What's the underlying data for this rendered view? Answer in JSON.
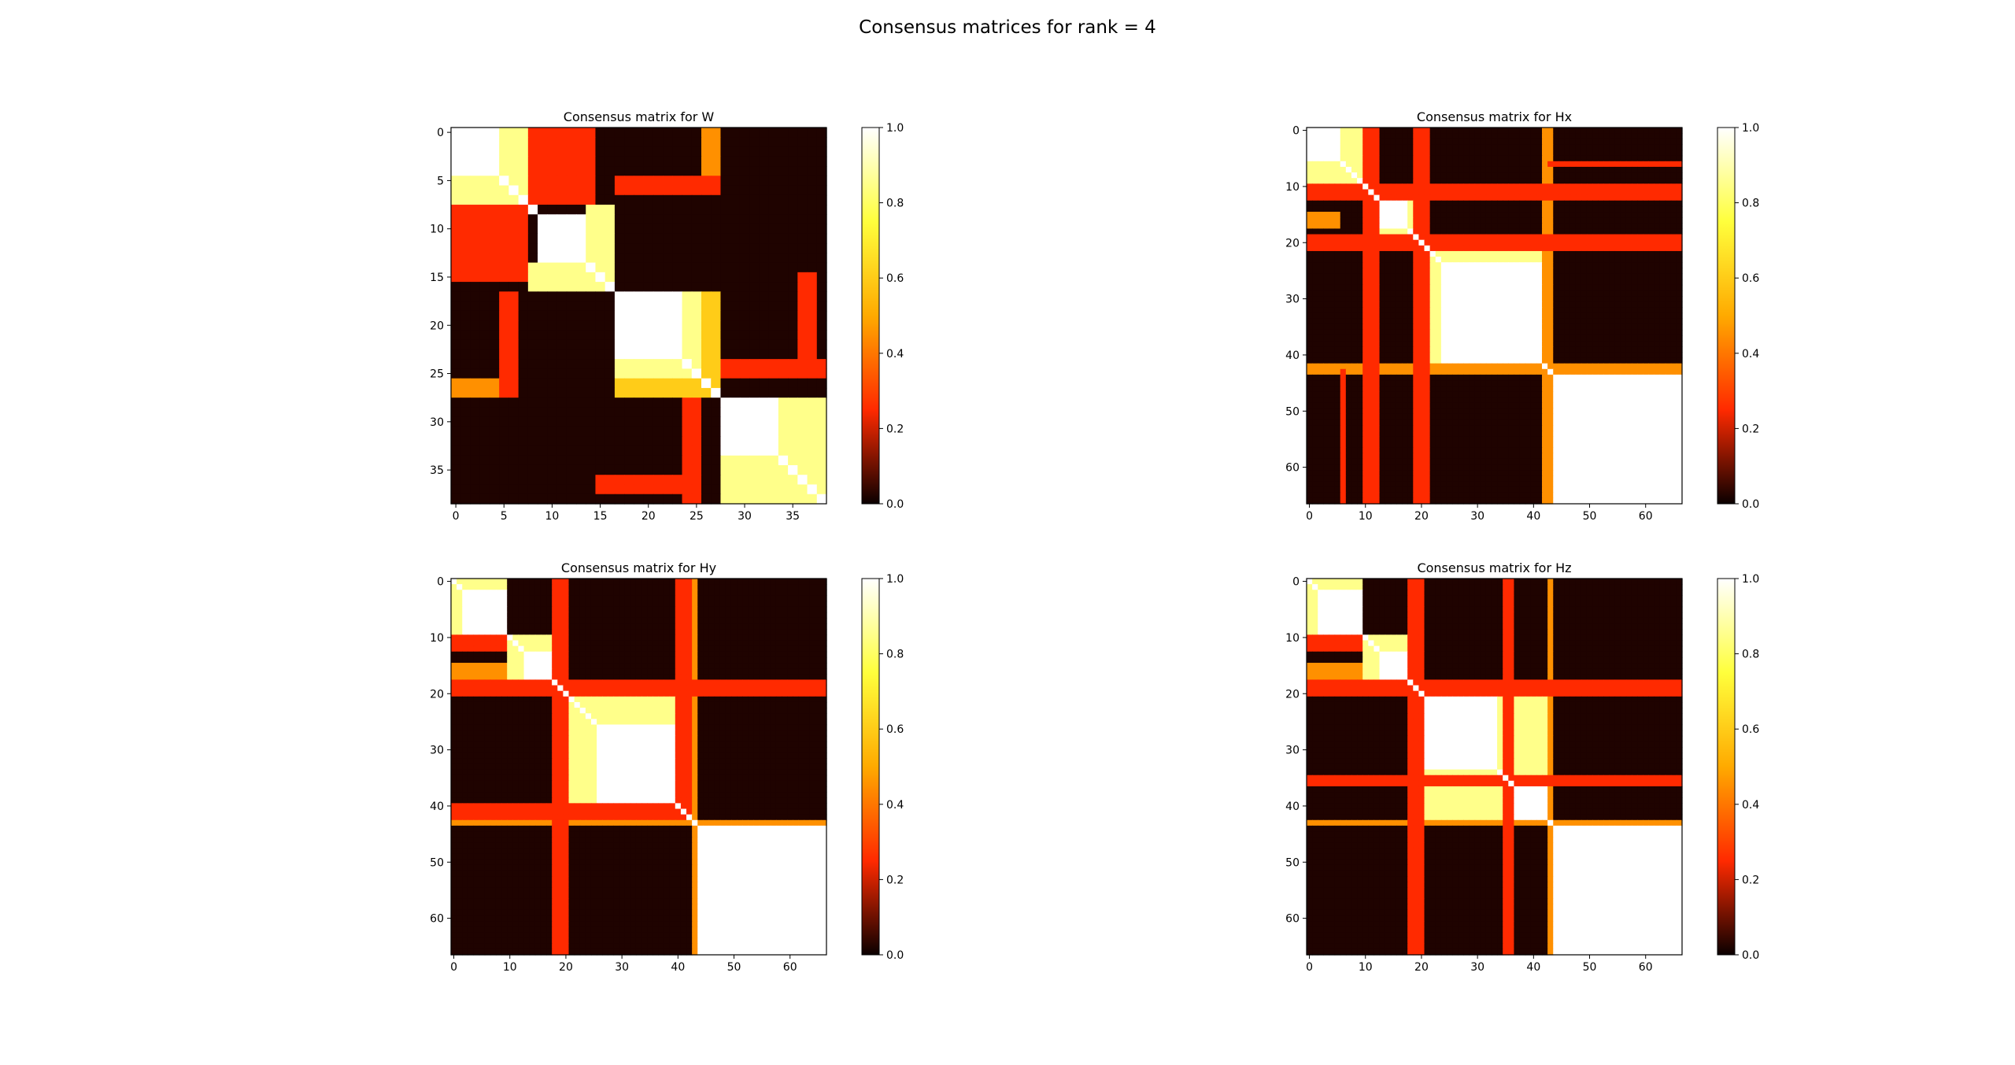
{
  "figure": {
    "suptitle": "Consensus matrices for rank = 4"
  },
  "colormap": {
    "name": "hot",
    "stops": [
      "#0b0000",
      "#ff2a00",
      "#ffaa00",
      "#ffff3c",
      "#ffffff"
    ]
  },
  "chart_data": [
    {
      "type": "heatmap",
      "title": "Consensus matrix for W",
      "n": 39,
      "xticks": [
        0,
        5,
        10,
        15,
        20,
        25,
        30,
        35
      ],
      "yticks": [
        0,
        5,
        10,
        15,
        20,
        25,
        30,
        35
      ],
      "colorbar_ticks": [
        "0.0",
        "0.2",
        "0.4",
        "0.6",
        "0.8",
        "1.0"
      ],
      "vmin": 0,
      "vmax": 1,
      "blocks": [
        {
          "rows": [
            0,
            4
          ],
          "cols": [
            0,
            4
          ],
          "v": 1.0
        },
        {
          "rows": [
            5,
            7
          ],
          "cols": [
            0,
            4
          ],
          "v": 0.85
        },
        {
          "rows": [
            0,
            7
          ],
          "cols": [
            5,
            7
          ],
          "v": 0.85
        },
        {
          "rows": [
            0,
            7
          ],
          "cols": [
            8,
            14
          ],
          "v": 0.25
        },
        {
          "rows": [
            8,
            15
          ],
          "cols": [
            0,
            7
          ],
          "v": 0.25
        },
        {
          "rows": [
            9,
            14
          ],
          "cols": [
            9,
            13
          ],
          "v": 1.0
        },
        {
          "rows": [
            8,
            16
          ],
          "cols": [
            14,
            16
          ],
          "v": 0.85
        },
        {
          "rows": [
            14,
            16
          ],
          "cols": [
            8,
            13
          ],
          "v": 0.85
        },
        {
          "rows": [
            17,
            25
          ],
          "cols": [
            17,
            23
          ],
          "v": 1.0
        },
        {
          "rows": [
            17,
            25
          ],
          "cols": [
            24,
            25
          ],
          "v": 0.85
        },
        {
          "rows": [
            24,
            25
          ],
          "cols": [
            17,
            23
          ],
          "v": 0.85
        },
        {
          "rows": [
            26,
            27
          ],
          "cols": [
            17,
            26
          ],
          "v": 0.6
        },
        {
          "rows": [
            17,
            26
          ],
          "cols": [
            26,
            27
          ],
          "v": 0.6
        },
        {
          "rows": [
            28,
            38
          ],
          "cols": [
            28,
            33
          ],
          "v": 1.0
        },
        {
          "rows": [
            28,
            38
          ],
          "cols": [
            34,
            38
          ],
          "v": 0.85
        },
        {
          "rows": [
            34,
            38
          ],
          "cols": [
            28,
            33
          ],
          "v": 0.85
        },
        {
          "rows": [
            17,
            27
          ],
          "cols": [
            5,
            6
          ],
          "v": 0.25
        },
        {
          "rows": [
            5,
            6
          ],
          "cols": [
            17,
            27
          ],
          "v": 0.25
        },
        {
          "rows": [
            26,
            27
          ],
          "cols": [
            0,
            4
          ],
          "v": 0.45
        },
        {
          "rows": [
            0,
            4
          ],
          "cols": [
            26,
            27
          ],
          "v": 0.45
        },
        {
          "rows": [
            28,
            38
          ],
          "cols": [
            24,
            25
          ],
          "v": 0.25
        },
        {
          "rows": [
            24,
            25
          ],
          "cols": [
            28,
            38
          ],
          "v": 0.25
        },
        {
          "rows": [
            36,
            37
          ],
          "cols": [
            15,
            25
          ],
          "v": 0.25
        },
        {
          "rows": [
            15,
            25
          ],
          "cols": [
            36,
            37
          ],
          "v": 0.25
        }
      ]
    },
    {
      "type": "heatmap",
      "title": "Consensus matrix for Hx",
      "n": 67,
      "xticks": [
        0,
        10,
        20,
        30,
        40,
        50,
        60
      ],
      "yticks": [
        0,
        10,
        20,
        30,
        40,
        50,
        60
      ],
      "colorbar_ticks": [
        "0.0",
        "0.2",
        "0.4",
        "0.6",
        "0.8",
        "1.0"
      ],
      "vmin": 0,
      "vmax": 1,
      "blocks": [
        {
          "rows": [
            0,
            5
          ],
          "cols": [
            0,
            5
          ],
          "v": 1.0
        },
        {
          "rows": [
            0,
            9
          ],
          "cols": [
            6,
            9
          ],
          "v": 0.85
        },
        {
          "rows": [
            6,
            9
          ],
          "cols": [
            0,
            5
          ],
          "v": 0.85
        },
        {
          "rows": [
            10,
            19
          ],
          "cols": [
            10,
            19
          ],
          "v": 0.85
        },
        {
          "rows": [
            12,
            17
          ],
          "cols": [
            12,
            17
          ],
          "v": 1.0
        },
        {
          "rows": [
            20,
            43
          ],
          "cols": [
            20,
            42
          ],
          "v": 0.85
        },
        {
          "rows": [
            24,
            41
          ],
          "cols": [
            24,
            41
          ],
          "v": 1.0
        },
        {
          "rows": [
            43,
            66
          ],
          "cols": [
            43,
            66
          ],
          "v": 1.0
        },
        {
          "rows": [
            42,
            43
          ],
          "cols": [
            0,
            66
          ],
          "v": 0.45
        },
        {
          "rows": [
            0,
            66
          ],
          "cols": [
            42,
            43
          ],
          "v": 0.45
        },
        {
          "rows": [
            10,
            12
          ],
          "cols": [
            0,
            66
          ],
          "v": 0.25
        },
        {
          "rows": [
            0,
            66
          ],
          "cols": [
            10,
            12
          ],
          "v": 0.25
        },
        {
          "rows": [
            19,
            21
          ],
          "cols": [
            0,
            66
          ],
          "v": 0.25
        },
        {
          "rows": [
            0,
            66
          ],
          "cols": [
            19,
            21
          ],
          "v": 0.25
        },
        {
          "rows": [
            6,
            6
          ],
          "cols": [
            43,
            66
          ],
          "v": 0.25
        },
        {
          "rows": [
            43,
            66
          ],
          "cols": [
            6,
            6
          ],
          "v": 0.25
        },
        {
          "rows": [
            15,
            17
          ],
          "cols": [
            0,
            5
          ],
          "v": 0.45
        }
      ]
    },
    {
      "type": "heatmap",
      "title": "Consensus matrix for Hy",
      "n": 67,
      "xticks": [
        0,
        10,
        20,
        30,
        40,
        50,
        60
      ],
      "yticks": [
        0,
        10,
        20,
        30,
        40,
        50,
        60
      ],
      "colorbar_ticks": [
        "0.0",
        "0.2",
        "0.4",
        "0.6",
        "0.8",
        "1.0"
      ],
      "vmin": 0,
      "vmax": 1,
      "blocks": [
        {
          "rows": [
            0,
            9
          ],
          "cols": [
            0,
            9
          ],
          "v": 0.85
        },
        {
          "rows": [
            2,
            9
          ],
          "cols": [
            2,
            9
          ],
          "v": 1.0
        },
        {
          "rows": [
            10,
            19
          ],
          "cols": [
            10,
            19
          ],
          "v": 0.85
        },
        {
          "rows": [
            13,
            17
          ],
          "cols": [
            13,
            17
          ],
          "v": 1.0
        },
        {
          "rows": [
            20,
            42
          ],
          "cols": [
            20,
            42
          ],
          "v": 0.85
        },
        {
          "rows": [
            26,
            40
          ],
          "cols": [
            26,
            40
          ],
          "v": 1.0
        },
        {
          "rows": [
            43,
            66
          ],
          "cols": [
            43,
            66
          ],
          "v": 1.0
        },
        {
          "rows": [
            43,
            43
          ],
          "cols": [
            0,
            66
          ],
          "v": 0.45
        },
        {
          "rows": [
            0,
            66
          ],
          "cols": [
            43,
            43
          ],
          "v": 0.45
        },
        {
          "rows": [
            18,
            20
          ],
          "cols": [
            0,
            66
          ],
          "v": 0.25
        },
        {
          "rows": [
            0,
            66
          ],
          "cols": [
            18,
            20
          ],
          "v": 0.25
        },
        {
          "rows": [
            40,
            42
          ],
          "cols": [
            0,
            42
          ],
          "v": 0.25
        },
        {
          "rows": [
            0,
            42
          ],
          "cols": [
            40,
            42
          ],
          "v": 0.25
        },
        {
          "rows": [
            10,
            12
          ],
          "cols": [
            0,
            9
          ],
          "v": 0.25
        },
        {
          "rows": [
            15,
            17
          ],
          "cols": [
            0,
            9
          ],
          "v": 0.45
        }
      ]
    },
    {
      "type": "heatmap",
      "title": "Consensus matrix for Hz",
      "n": 67,
      "xticks": [
        0,
        10,
        20,
        30,
        40,
        50,
        60
      ],
      "yticks": [
        0,
        10,
        20,
        30,
        40,
        50,
        60
      ],
      "colorbar_ticks": [
        "0.0",
        "0.2",
        "0.4",
        "0.6",
        "0.8",
        "1.0"
      ],
      "vmin": 0,
      "vmax": 1,
      "blocks": [
        {
          "rows": [
            0,
            9
          ],
          "cols": [
            0,
            9
          ],
          "v": 0.85
        },
        {
          "rows": [
            2,
            9
          ],
          "cols": [
            2,
            9
          ],
          "v": 1.0
        },
        {
          "rows": [
            10,
            19
          ],
          "cols": [
            10,
            19
          ],
          "v": 0.85
        },
        {
          "rows": [
            13,
            17
          ],
          "cols": [
            13,
            17
          ],
          "v": 1.0
        },
        {
          "rows": [
            20,
            34
          ],
          "cols": [
            20,
            34
          ],
          "v": 1.0
        },
        {
          "rows": [
            20,
            42
          ],
          "cols": [
            34,
            42
          ],
          "v": 0.85
        },
        {
          "rows": [
            34,
            42
          ],
          "cols": [
            20,
            34
          ],
          "v": 0.85
        },
        {
          "rows": [
            36,
            42
          ],
          "cols": [
            36,
            42
          ],
          "v": 1.0
        },
        {
          "rows": [
            43,
            66
          ],
          "cols": [
            43,
            66
          ],
          "v": 1.0
        },
        {
          "rows": [
            43,
            43
          ],
          "cols": [
            0,
            66
          ],
          "v": 0.45
        },
        {
          "rows": [
            0,
            66
          ],
          "cols": [
            43,
            43
          ],
          "v": 0.45
        },
        {
          "rows": [
            18,
            20
          ],
          "cols": [
            0,
            66
          ],
          "v": 0.25
        },
        {
          "rows": [
            0,
            66
          ],
          "cols": [
            18,
            20
          ],
          "v": 0.25
        },
        {
          "rows": [
            35,
            36
          ],
          "cols": [
            0,
            66
          ],
          "v": 0.25
        },
        {
          "rows": [
            0,
            66
          ],
          "cols": [
            35,
            36
          ],
          "v": 0.25
        },
        {
          "rows": [
            10,
            12
          ],
          "cols": [
            0,
            9
          ],
          "v": 0.25
        },
        {
          "rows": [
            15,
            17
          ],
          "cols": [
            0,
            9
          ],
          "v": 0.45
        }
      ]
    }
  ]
}
